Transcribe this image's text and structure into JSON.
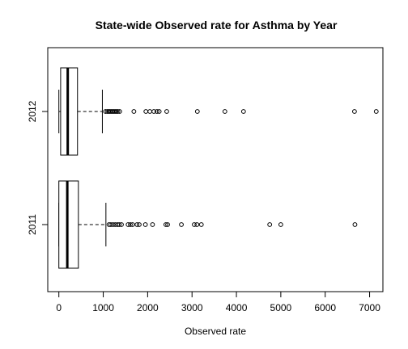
{
  "chart_data": {
    "type": "boxplot",
    "orientation": "horizontal",
    "title": "State-wide Observed rate for Asthma by Year",
    "xlabel": "Observed rate",
    "ylabel": "",
    "xlim": [
      -250,
      7300
    ],
    "x_ticks": [
      0,
      1000,
      2000,
      3000,
      4000,
      5000,
      6000,
      7000
    ],
    "grid": false,
    "categories": [
      "2011",
      "2012"
    ],
    "boxes": [
      {
        "category": "2011",
        "whisker_low": 0,
        "q1": 0,
        "median": 190,
        "q3": 440,
        "whisker_high": 1060,
        "outliers": [
          1130,
          1170,
          1220,
          1270,
          1320,
          1360,
          1410,
          1560,
          1610,
          1660,
          1760,
          1810,
          1950,
          2110,
          2410,
          2450,
          2760,
          3050,
          3110,
          3210,
          4750,
          5000,
          6670
        ]
      },
      {
        "category": "2012",
        "whisker_low": 0,
        "q1": 40,
        "median": 200,
        "q3": 420,
        "whisker_high": 980,
        "outliers": [
          1050,
          1090,
          1120,
          1150,
          1180,
          1210,
          1240,
          1270,
          1300,
          1330,
          1370,
          1690,
          1960,
          2050,
          2140,
          2210,
          2260,
          2430,
          3120,
          3740,
          4160,
          6660,
          7150
        ]
      }
    ]
  }
}
